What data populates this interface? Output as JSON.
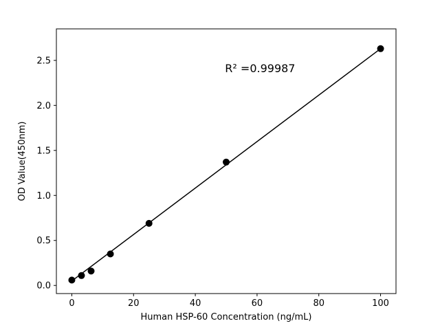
{
  "chart_data": {
    "type": "scatter",
    "x": [
      0,
      3.125,
      6.25,
      12.5,
      25,
      50,
      100
    ],
    "y": [
      0.06,
      0.11,
      0.16,
      0.35,
      0.69,
      1.37,
      2.63
    ],
    "fit_line": {
      "x": [
        0,
        100
      ],
      "y": [
        0.05,
        2.63
      ]
    },
    "annotation": {
      "text": "R² =0.99987",
      "x": 61,
      "y": 2.37
    },
    "title": "",
    "xlabel": "Human HSP-60 Concentration (ng/mL)",
    "ylabel": "OD Value(450nm)",
    "xlim": [
      -5,
      105
    ],
    "ylim": [
      -0.09,
      2.85
    ],
    "x_ticks": {
      "values": [
        0,
        20,
        40,
        60,
        80,
        100
      ],
      "labels": [
        "0",
        "20",
        "40",
        "60",
        "80",
        "100"
      ]
    },
    "y_ticks": {
      "values": [
        0,
        0.5,
        1.0,
        1.5,
        2.0,
        2.5
      ],
      "labels": [
        "0.0",
        "0.5",
        "1.0",
        "1.5",
        "2.0",
        "2.5"
      ]
    },
    "legend": null,
    "grid": false,
    "colors": {
      "line": "#000000",
      "marker": "#000000",
      "spine": "#000000",
      "text": "#000000",
      "background": "#ffffff"
    },
    "marker_radius": 5,
    "line_width": 1.5
  }
}
